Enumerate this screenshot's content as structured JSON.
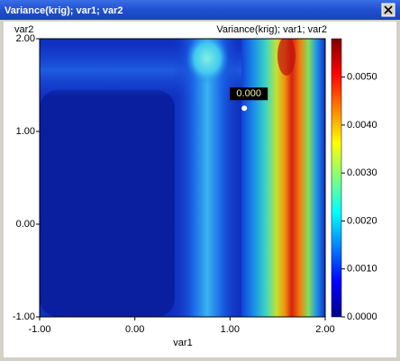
{
  "window": {
    "title": "Variance(krig); var1; var2"
  },
  "chart_data": {
    "type": "contour",
    "title": "Variance(krig); var1; var2",
    "xlabel": "var1",
    "ylabel": "var2",
    "xlim": [
      -1,
      2
    ],
    "ylim": [
      -1,
      2
    ],
    "xticks": [
      {
        "value": -1,
        "label": "-1.00"
      },
      {
        "value": 0,
        "label": "0.00"
      },
      {
        "value": 1,
        "label": "1.00"
      },
      {
        "value": 2,
        "label": "2.00"
      }
    ],
    "yticks": [
      {
        "value": -1,
        "label": "-1.00"
      },
      {
        "value": 0,
        "label": "0.00"
      },
      {
        "value": 1,
        "label": "1.00"
      },
      {
        "value": 2,
        "label": "2.00"
      }
    ],
    "colorbar": {
      "lim": [
        0,
        0.0058
      ],
      "ticks": [
        {
          "value": 0,
          "label": "0.0000"
        },
        {
          "value": 0.001,
          "label": "0.0010"
        },
        {
          "value": 0.002,
          "label": "0.0020"
        },
        {
          "value": 0.003,
          "label": "0.0030"
        },
        {
          "value": 0.004,
          "label": "0.0040"
        },
        {
          "value": 0.005,
          "label": "0.0050"
        }
      ]
    },
    "marker": {
      "x": 1.15,
      "y": 1.25,
      "label": "0.000"
    }
  }
}
